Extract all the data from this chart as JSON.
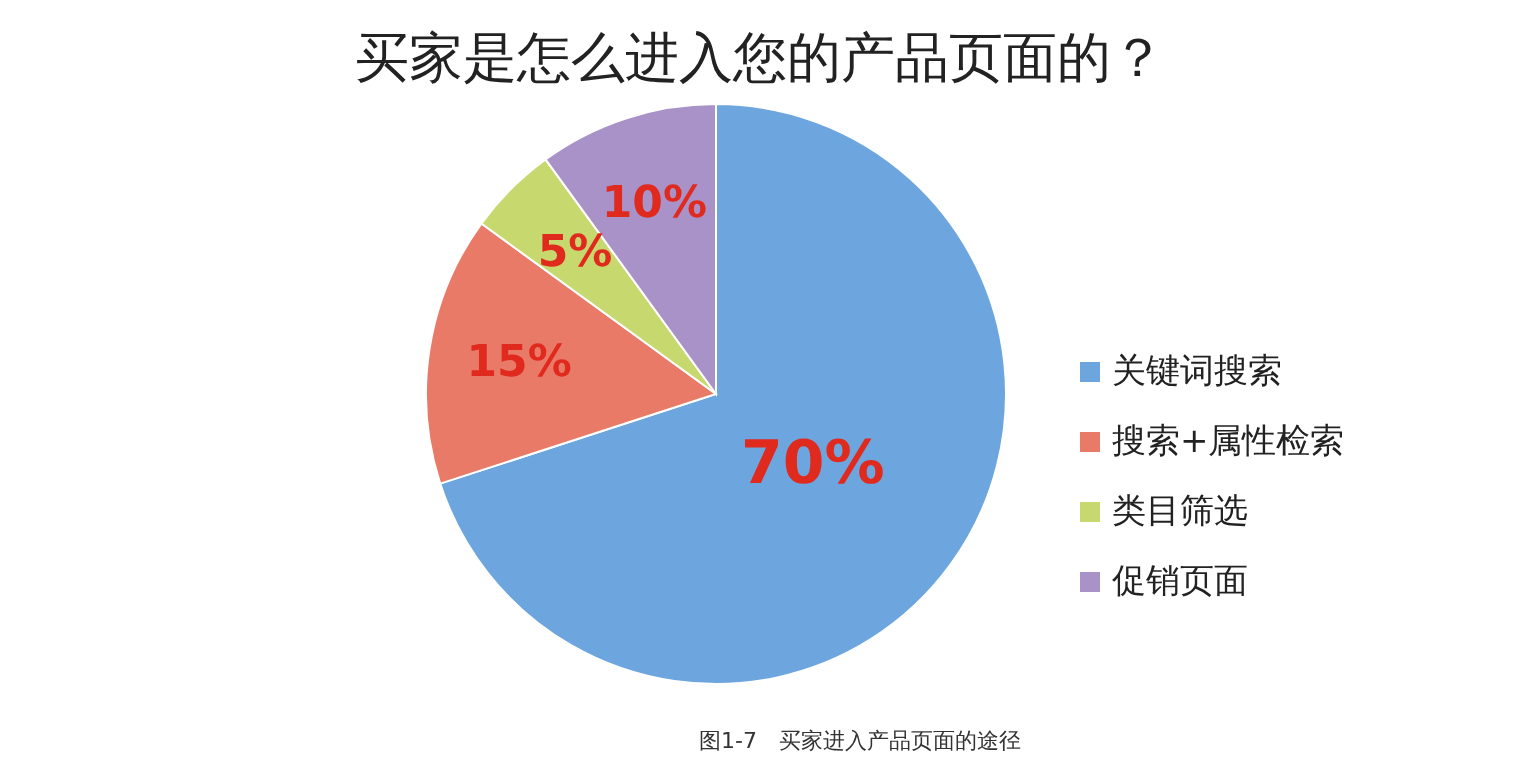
{
  "chart_data": {
    "type": "pie",
    "title": "买家是怎么进入您的产品页面的？",
    "categories": [
      "关键词搜索",
      "搜索+属性检索",
      "类目筛选",
      "促销页面"
    ],
    "values": [
      70,
      15,
      5,
      10
    ],
    "colors": [
      "#6da6de",
      "#ea7a68",
      "#c6d86e",
      "#a892c8"
    ],
    "value_labels": [
      "70%",
      "15%",
      "5%",
      "10%"
    ],
    "legend": "right",
    "annotations": [
      "图1-7　买家进入产品页面的途径"
    ]
  }
}
